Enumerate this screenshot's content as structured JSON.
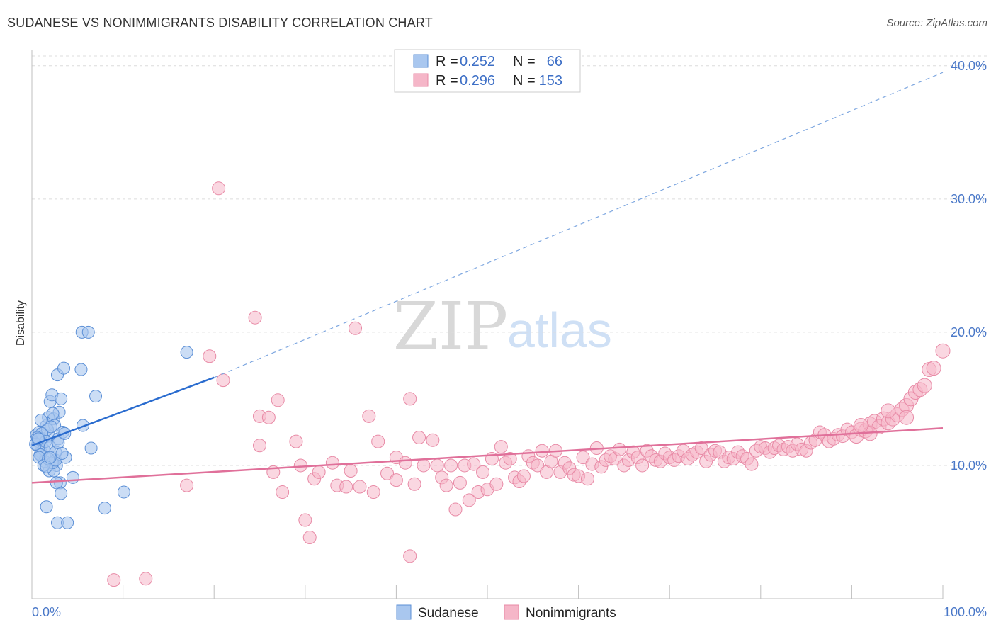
{
  "title": "SUDANESE VS NONIMMIGRANTS DISABILITY CORRELATION CHART",
  "source": "Source: ZipAtlas.com",
  "watermark": {
    "zip": "ZIP",
    "atlas": "atlas"
  },
  "legend": {
    "r_label": "R =",
    "n_label": "N =",
    "rows": [
      {
        "r": "0.252",
        "n": "66",
        "color": "#a9c7ef"
      },
      {
        "r": "0.296",
        "n": "153",
        "color": "#f5b6c8"
      }
    ]
  },
  "bottom_legend": [
    "Sudanese",
    "Nonimmigrants"
  ],
  "colors": {
    "sudanese_fill": "#a9c7ef",
    "sudanese_stroke": "#5b8fd6",
    "sudanese_line": "#2a6ccf",
    "nonimm_fill": "#f5b6c8",
    "nonimm_stroke": "#e88aa6",
    "nonimm_line": "#e0709a",
    "tick": "#4a78c8"
  },
  "chart_data": {
    "type": "scatter",
    "xlabel": "",
    "ylabel": "Disability",
    "xlim": [
      0,
      100
    ],
    "ylim": [
      0,
      41
    ],
    "x_tick_labels": [
      "0.0%",
      "100.0%"
    ],
    "y_ticks": [
      10,
      20,
      30,
      40
    ],
    "y_tick_labels": [
      "10.0%",
      "20.0%",
      "30.0%",
      "40.0%"
    ],
    "grid": true,
    "series": [
      {
        "name": "Sudanese",
        "trend": {
          "x0": 0,
          "y0": 11.5,
          "x1": 20,
          "y1": 16.6,
          "dashed_to_x": 100,
          "dashed_to_y": 39.5
        },
        "points": [
          [
            0.5,
            12.3
          ],
          [
            0.7,
            11.8
          ],
          [
            0.8,
            12.5
          ],
          [
            1.0,
            11.0
          ],
          [
            0.6,
            11.5
          ],
          [
            1.2,
            12.0
          ],
          [
            1.5,
            10.6
          ],
          [
            1.0,
            10.8
          ],
          [
            1.3,
            11.2
          ],
          [
            1.6,
            13.0
          ],
          [
            1.8,
            13.6
          ],
          [
            2.0,
            14.8
          ],
          [
            2.2,
            15.3
          ],
          [
            2.4,
            13.5
          ],
          [
            1.9,
            12.2
          ],
          [
            2.5,
            13.0
          ],
          [
            2.7,
            10.0
          ],
          [
            2.2,
            10.2
          ],
          [
            1.9,
            9.6
          ],
          [
            1.4,
            10.3
          ],
          [
            1.7,
            12.7
          ],
          [
            0.9,
            10.8
          ],
          [
            2.4,
            9.6
          ],
          [
            2.3,
            10.2
          ],
          [
            2.8,
            16.8
          ],
          [
            3.5,
            17.3
          ],
          [
            3.2,
            15.0
          ],
          [
            2.9,
            12.0
          ],
          [
            3.0,
            14.0
          ],
          [
            3.4,
            12.5
          ],
          [
            2.6,
            10.4
          ],
          [
            3.7,
            10.6
          ],
          [
            3.1,
            8.7
          ],
          [
            2.7,
            8.7
          ],
          [
            3.2,
            7.9
          ],
          [
            1.6,
            6.9
          ],
          [
            2.8,
            5.7
          ],
          [
            3.9,
            5.7
          ],
          [
            4.5,
            9.1
          ],
          [
            5.4,
            17.2
          ],
          [
            5.6,
            13.0
          ],
          [
            6.5,
            11.3
          ],
          [
            7.0,
            15.2
          ],
          [
            5.5,
            20.0
          ],
          [
            6.2,
            20.0
          ],
          [
            8.0,
            6.8
          ],
          [
            10.1,
            8.0
          ],
          [
            17.0,
            18.5
          ],
          [
            0.4,
            11.6
          ],
          [
            0.8,
            10.6
          ],
          [
            1.1,
            12.4
          ],
          [
            1.5,
            11.8
          ],
          [
            2.0,
            11.4
          ],
          [
            2.6,
            11.0
          ],
          [
            1.3,
            10.0
          ],
          [
            0.6,
            12.1
          ],
          [
            1.8,
            10.5
          ],
          [
            2.1,
            12.9
          ],
          [
            2.9,
            11.7
          ],
          [
            3.3,
            10.9
          ],
          [
            1.0,
            13.4
          ],
          [
            0.7,
            12.0
          ],
          [
            2.3,
            13.9
          ],
          [
            1.6,
            9.9
          ],
          [
            3.6,
            12.4
          ],
          [
            2.0,
            10.6
          ]
        ]
      },
      {
        "name": "Nonimmigrants",
        "trend": {
          "x0": 0,
          "y0": 8.7,
          "x1": 100,
          "y1": 12.8
        },
        "points": [
          [
            9.0,
            1.4
          ],
          [
            12.5,
            1.5
          ],
          [
            17,
            8.5
          ],
          [
            19.5,
            18.2
          ],
          [
            20.5,
            30.8
          ],
          [
            21,
            16.4
          ],
          [
            24.5,
            21.1
          ],
          [
            25,
            13.7
          ],
          [
            25,
            11.5
          ],
          [
            26,
            13.6
          ],
          [
            26.5,
            9.5
          ],
          [
            27,
            14.9
          ],
          [
            27.5,
            8.0
          ],
          [
            29,
            11.8
          ],
          [
            29.5,
            10.0
          ],
          [
            30,
            5.9
          ],
          [
            30.5,
            4.6
          ],
          [
            31,
            9.0
          ],
          [
            31.5,
            9.5
          ],
          [
            33,
            10.2
          ],
          [
            33.5,
            8.5
          ],
          [
            34.5,
            8.4
          ],
          [
            35,
            9.6
          ],
          [
            35.5,
            20.3
          ],
          [
            36,
            8.4
          ],
          [
            37,
            13.7
          ],
          [
            37.5,
            8.0
          ],
          [
            38,
            11.8
          ],
          [
            39,
            9.4
          ],
          [
            40,
            10.6
          ],
          [
            40,
            8.9
          ],
          [
            41,
            10.2
          ],
          [
            41.5,
            3.2
          ],
          [
            41.5,
            15.0
          ],
          [
            42,
            8.6
          ],
          [
            42.5,
            12.1
          ],
          [
            43,
            10.0
          ],
          [
            44,
            11.9
          ],
          [
            44.5,
            10.0
          ],
          [
            45,
            9.1
          ],
          [
            45.5,
            8.5
          ],
          [
            46,
            10.0
          ],
          [
            46.5,
            6.7
          ],
          [
            47,
            8.7
          ],
          [
            47.5,
            10.0
          ],
          [
            48,
            7.4
          ],
          [
            48.5,
            10.1
          ],
          [
            49,
            8.0
          ],
          [
            49.5,
            9.5
          ],
          [
            50,
            8.2
          ],
          [
            50.5,
            10.5
          ],
          [
            51,
            8.6
          ],
          [
            51.5,
            11.4
          ],
          [
            52,
            10.2
          ],
          [
            52.5,
            10.5
          ],
          [
            53,
            9.1
          ],
          [
            53.5,
            8.8
          ],
          [
            54,
            9.2
          ],
          [
            54.5,
            10.7
          ],
          [
            55,
            10.2
          ],
          [
            55.5,
            10.0
          ],
          [
            56,
            11.1
          ],
          [
            56.5,
            9.5
          ],
          [
            57,
            10.3
          ],
          [
            57.5,
            11.1
          ],
          [
            58,
            9.5
          ],
          [
            58.5,
            10.2
          ],
          [
            59,
            9.8
          ],
          [
            59.5,
            9.3
          ],
          [
            60,
            9.2
          ],
          [
            60.5,
            10.6
          ],
          [
            61,
            9.0
          ],
          [
            61.5,
            10.1
          ],
          [
            62,
            11.3
          ],
          [
            62.5,
            9.9
          ],
          [
            63,
            10.4
          ],
          [
            63.5,
            10.7
          ],
          [
            64,
            10.5
          ],
          [
            64.5,
            11.2
          ],
          [
            65,
            10.0
          ],
          [
            65.5,
            10.4
          ],
          [
            66,
            11.0
          ],
          [
            66.5,
            10.6
          ],
          [
            67,
            10.0
          ],
          [
            67.5,
            11.1
          ],
          [
            68,
            10.7
          ],
          [
            68.5,
            10.4
          ],
          [
            69,
            10.3
          ],
          [
            69.5,
            10.9
          ],
          [
            70,
            10.6
          ],
          [
            70.5,
            10.4
          ],
          [
            71,
            10.7
          ],
          [
            71.5,
            11.1
          ],
          [
            72,
            10.5
          ],
          [
            72.5,
            10.8
          ],
          [
            73,
            11.0
          ],
          [
            73.5,
            11.3
          ],
          [
            74,
            10.3
          ],
          [
            74.5,
            10.8
          ],
          [
            75,
            11.1
          ],
          [
            75.5,
            11.0
          ],
          [
            76,
            10.3
          ],
          [
            76.5,
            10.6
          ],
          [
            77,
            10.5
          ],
          [
            77.5,
            11.0
          ],
          [
            78,
            10.7
          ],
          [
            78.5,
            10.5
          ],
          [
            79,
            10.1
          ],
          [
            79.5,
            11.1
          ],
          [
            80,
            11.4
          ],
          [
            80.5,
            11.3
          ],
          [
            81,
            11.0
          ],
          [
            81.5,
            11.3
          ],
          [
            82,
            11.5
          ],
          [
            82.5,
            11.2
          ],
          [
            83,
            11.4
          ],
          [
            83.5,
            11.1
          ],
          [
            84,
            11.6
          ],
          [
            84.5,
            11.2
          ],
          [
            85,
            11.1
          ],
          [
            85.5,
            11.7
          ],
          [
            86,
            11.9
          ],
          [
            86.5,
            12.5
          ],
          [
            87,
            12.3
          ],
          [
            87.5,
            11.8
          ],
          [
            88,
            12.0
          ],
          [
            88.5,
            12.3
          ],
          [
            89,
            12.2
          ],
          [
            89.5,
            12.7
          ],
          [
            90,
            12.5
          ],
          [
            90.5,
            12.2
          ],
          [
            91,
            12.7
          ],
          [
            91.5,
            12.6
          ],
          [
            92,
            13.1
          ],
          [
            92.5,
            13.3
          ],
          [
            93,
            12.9
          ],
          [
            93.5,
            13.5
          ],
          [
            94,
            13.2
          ],
          [
            94.5,
            13.5
          ],
          [
            95,
            13.8
          ],
          [
            95.5,
            14.2
          ],
          [
            96,
            14.5
          ],
          [
            96.5,
            15.0
          ],
          [
            97,
            15.5
          ],
          [
            97.5,
            15.7
          ],
          [
            98,
            16.0
          ],
          [
            98.5,
            17.2
          ],
          [
            99,
            17.3
          ],
          [
            100,
            18.6
          ],
          [
            94,
            14.1
          ],
          [
            92,
            12.4
          ],
          [
            96,
            13.6
          ],
          [
            91,
            13.0
          ]
        ]
      }
    ]
  }
}
